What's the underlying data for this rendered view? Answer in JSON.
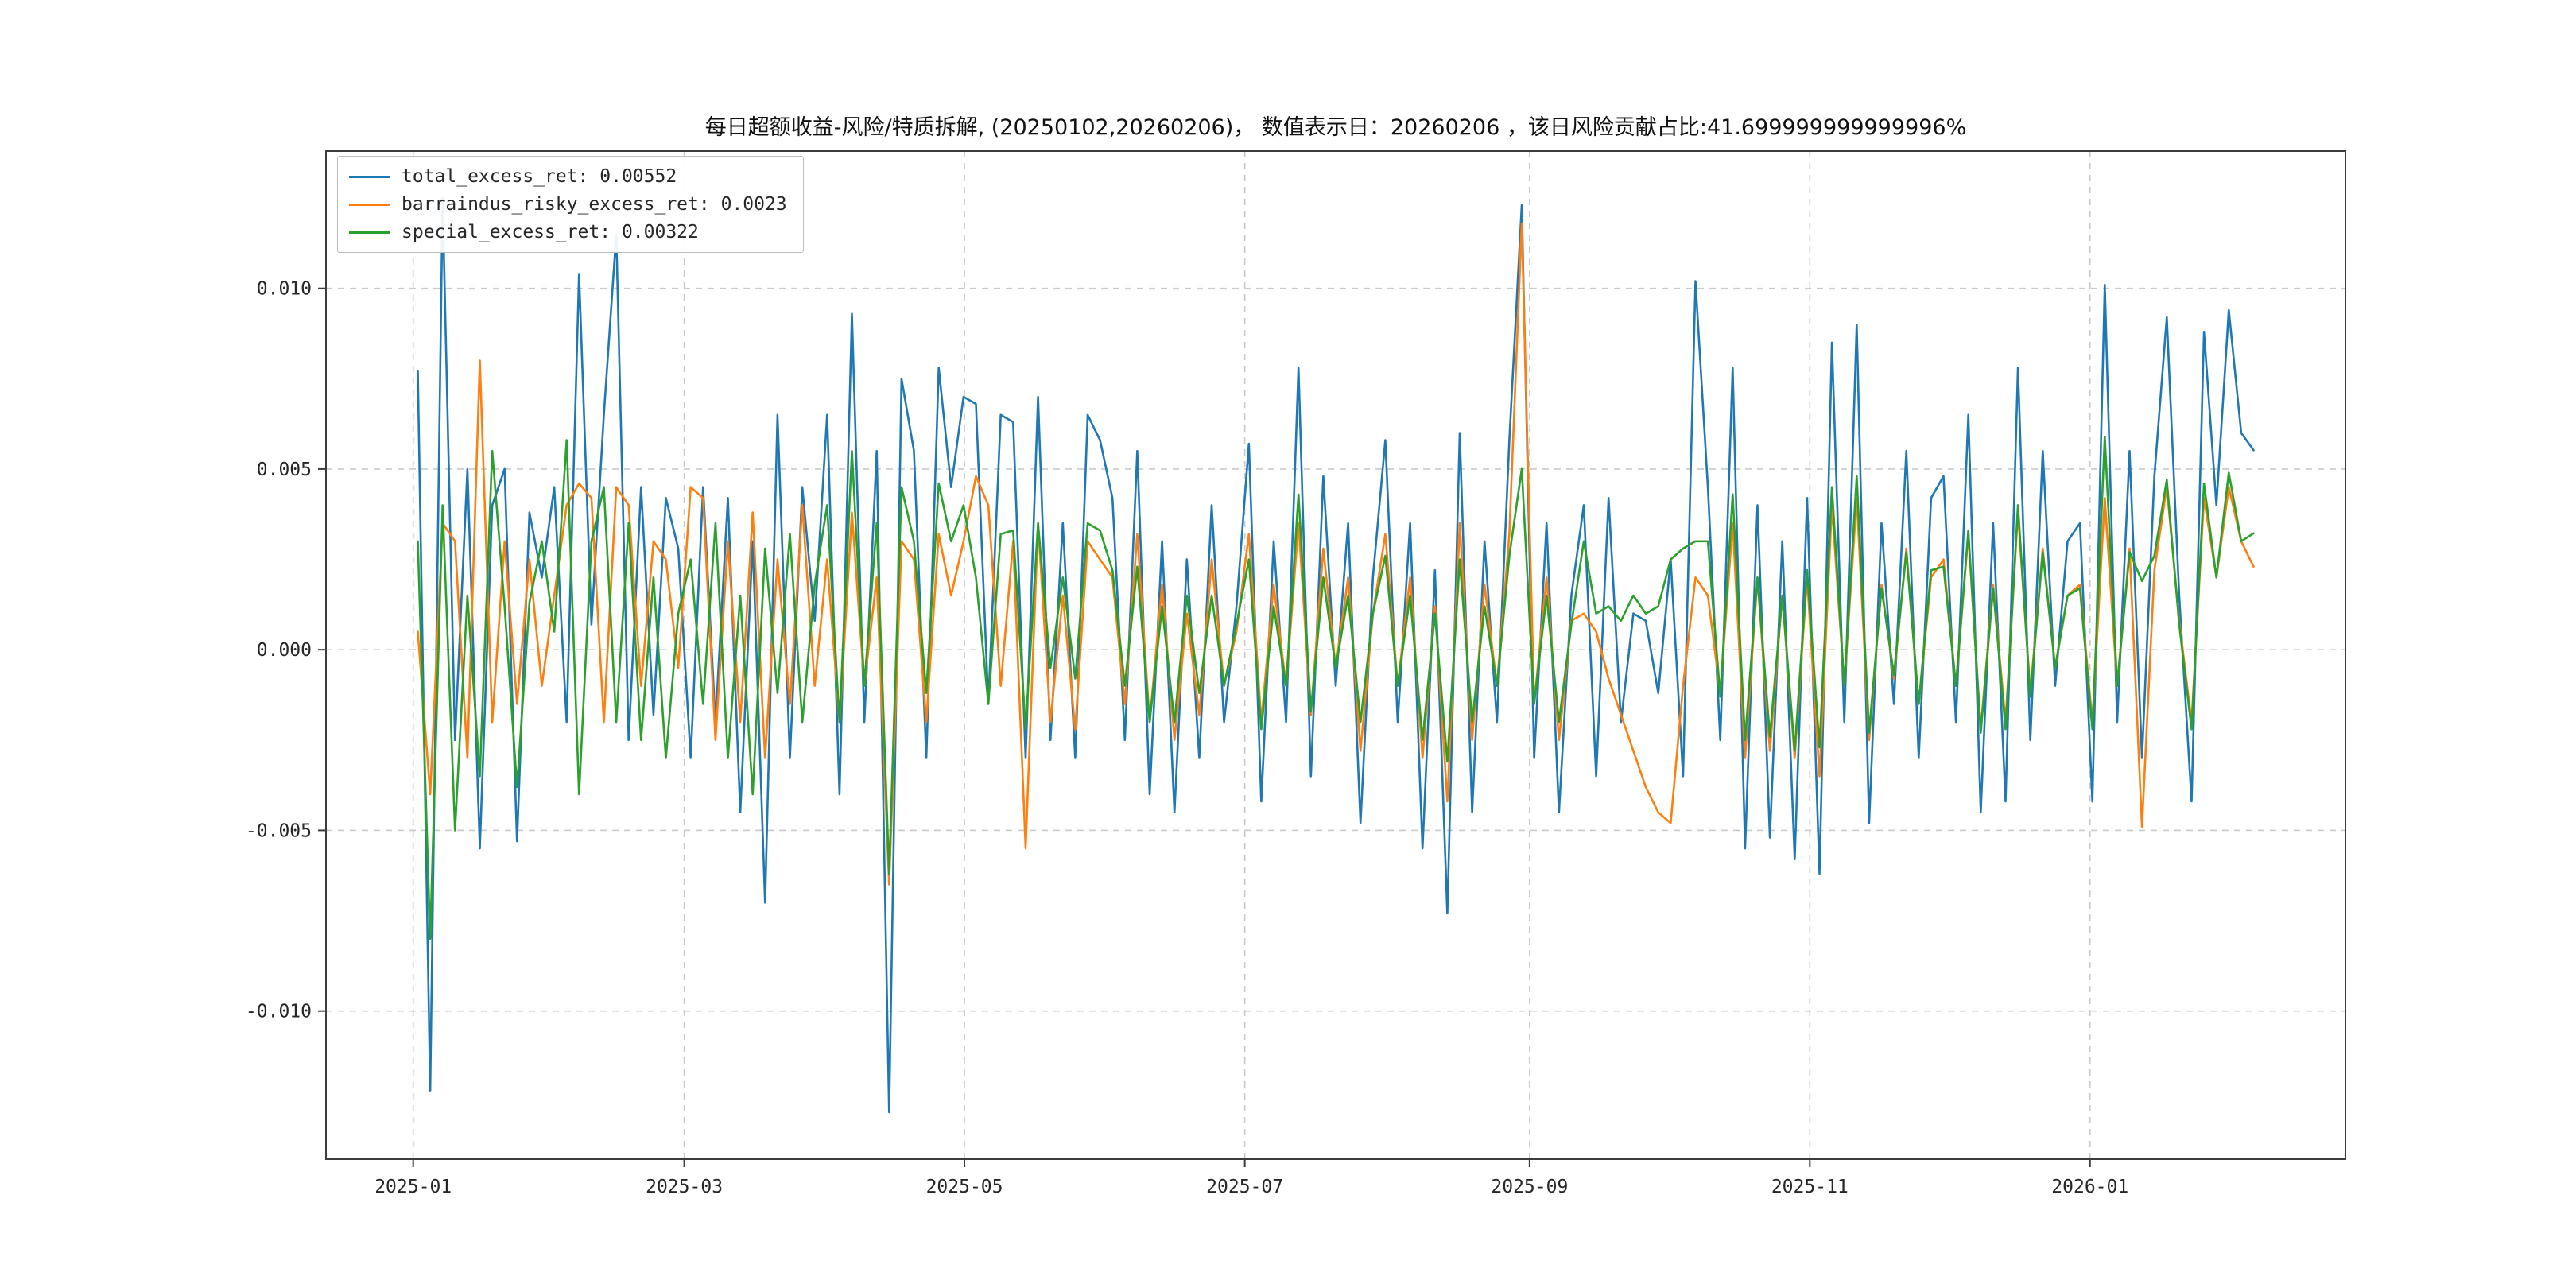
{
  "chart_data": {
    "type": "line",
    "title": "每日超额收益-风险/特质拆解, (20250102,20260206)，  数值表示日：20260206 ，该日风险贡献占比:41.699999999999996%",
    "x_axis": {
      "tick_labels": [
        "2025-01",
        "2025-03",
        "2025-05",
        "2025-07",
        "2025-09",
        "2025-11",
        "2026-01"
      ],
      "tick_positions": [
        -0.37,
        21.48,
        44.07,
        66.67,
        89.63,
        112.22,
        134.81
      ],
      "xlim": [
        -7.4,
        155.4
      ]
    },
    "y_axis": {
      "tick_labels": [
        "0.010",
        "0.005",
        "0.000",
        "-0.005",
        "-0.010"
      ],
      "tick_values": [
        0.01,
        0.005,
        0.0,
        -0.005,
        -0.01
      ],
      "ylim": [
        -0.0141,
        0.0138
      ]
    },
    "grid": {
      "on": true,
      "style": "dashed",
      "color": "#c9c9c9"
    },
    "legend": {
      "position": "upper-left",
      "entries": [
        {
          "label": "total_excess_ret: 0.00552",
          "color": "#1f77b4"
        },
        {
          "label": "barraindus_risky_excess_ret: 0.0023",
          "color": "#ff7f0e"
        },
        {
          "label": "special_excess_ret: 0.00322",
          "color": "#2ca02c"
        }
      ]
    },
    "series": [
      {
        "name": "total_excess_ret",
        "last_value": 0.00552,
        "color": "#1f77b4",
        "values": [
          0.0077,
          -0.0122,
          0.0125,
          -0.0025,
          0.005,
          -0.0055,
          0.004,
          0.005,
          -0.0053,
          0.0038,
          0.002,
          0.0045,
          -0.002,
          0.0104,
          0.0007,
          0.0065,
          0.0115,
          -0.0025,
          0.0045,
          -0.0018,
          0.0042,
          0.0028,
          -0.003,
          0.0045,
          -0.002,
          0.0042,
          -0.0045,
          0.003,
          -0.007,
          0.0065,
          -0.003,
          0.0045,
          0.0008,
          0.0065,
          -0.004,
          0.0093,
          -0.002,
          0.0055,
          -0.0128,
          0.0075,
          0.0055,
          -0.003,
          0.0078,
          0.0045,
          0.007,
          0.0068,
          -0.0015,
          0.0065,
          0.0063,
          -0.003,
          0.007,
          -0.0025,
          0.0035,
          -0.003,
          0.0065,
          0.0058,
          0.0042,
          -0.0025,
          0.0055,
          -0.004,
          0.003,
          -0.0045,
          0.0025,
          -0.003,
          0.004,
          -0.002,
          0.0012,
          0.0057,
          -0.0042,
          0.003,
          -0.002,
          0.0078,
          -0.0035,
          0.0048,
          -0.001,
          0.0035,
          -0.0048,
          0.002,
          0.0058,
          -0.002,
          0.0035,
          -0.0055,
          0.0022,
          -0.0073,
          0.006,
          -0.0045,
          0.003,
          -0.002,
          0.0058,
          0.0123,
          -0.003,
          0.0035,
          -0.0045,
          0.0015,
          0.004,
          -0.0035,
          0.0042,
          -0.002,
          0.001,
          0.0008,
          -0.0012,
          0.0025,
          -0.0035,
          0.0102,
          0.0045,
          -0.0025,
          0.0078,
          -0.0055,
          0.004,
          -0.0052,
          0.003,
          -0.0058,
          0.0042,
          -0.0062,
          0.0085,
          -0.002,
          0.009,
          -0.0048,
          0.0035,
          -0.0015,
          0.0055,
          -0.003,
          0.0042,
          0.0048,
          -0.002,
          0.0065,
          -0.0045,
          0.0035,
          -0.0042,
          0.0078,
          -0.0025,
          0.0055,
          -0.001,
          0.003,
          0.0035,
          -0.0042,
          0.0101,
          -0.002,
          0.0055,
          -0.003,
          0.0048,
          0.0092,
          0.0015,
          -0.0042,
          0.0088,
          0.004,
          0.0094,
          0.006,
          0.00552
        ]
      },
      {
        "name": "barraindus_risky_excess_ret",
        "last_value": 0.0023,
        "color": "#ff7f0e",
        "values": [
          0.0005,
          -0.004,
          0.0035,
          0.003,
          -0.003,
          0.008,
          -0.002,
          0.003,
          -0.0015,
          0.0025,
          -0.001,
          0.0015,
          0.004,
          0.0046,
          0.0042,
          -0.002,
          0.0045,
          0.004,
          -0.001,
          0.003,
          0.0025,
          -0.0005,
          0.0045,
          0.0042,
          -0.0025,
          0.003,
          -0.002,
          0.0038,
          -0.003,
          0.0025,
          -0.0015,
          0.004,
          -0.001,
          0.0025,
          -0.002,
          0.0038,
          -0.001,
          0.002,
          -0.0065,
          0.003,
          0.0025,
          -0.002,
          0.0032,
          0.0015,
          0.003,
          0.0048,
          0.004,
          -0.001,
          0.003,
          -0.0055,
          0.0035,
          -0.002,
          0.0015,
          -0.0022,
          0.003,
          0.0025,
          0.002,
          -0.0015,
          0.0032,
          -0.002,
          0.0018,
          -0.0025,
          0.001,
          -0.0018,
          0.0025,
          -0.001,
          0.0005,
          0.0032,
          -0.002,
          0.0018,
          -0.001,
          0.0035,
          -0.0018,
          0.0028,
          -0.0005,
          0.002,
          -0.0028,
          0.001,
          0.0032,
          -0.001,
          0.002,
          -0.003,
          0.0012,
          -0.0042,
          0.0035,
          -0.0025,
          0.0018,
          -0.001,
          0.0032,
          0.0118,
          -0.0015,
          0.002,
          -0.0025,
          0.0008,
          0.001,
          0.0005,
          -0.0008,
          -0.0018,
          -0.0028,
          -0.0038,
          -0.0045,
          -0.0048,
          -0.001,
          0.002,
          0.0015,
          -0.0012,
          0.0035,
          -0.003,
          0.002,
          -0.0028,
          0.0015,
          -0.003,
          0.002,
          -0.0035,
          0.004,
          -0.001,
          0.0042,
          -0.0025,
          0.0018,
          -0.0008,
          0.0028,
          -0.0015,
          0.002,
          0.0025,
          -0.001,
          0.0032,
          -0.0022,
          0.0018,
          -0.002,
          0.0038,
          -0.0012,
          0.0028,
          -0.0005,
          0.0015,
          0.0018,
          -0.002,
          0.0042,
          -0.001,
          0.0028,
          -0.0049,
          0.0022,
          0.0045,
          0.0008,
          -0.002,
          0.0042,
          0.002,
          0.0045,
          0.003,
          0.0023
        ]
      },
      {
        "name": "special_excess_ret",
        "last_value": 0.00322,
        "color": "#2ca02c",
        "values": [
          0.003,
          -0.008,
          0.004,
          -0.005,
          0.0015,
          -0.0035,
          0.0055,
          0.0012,
          -0.0038,
          0.0013,
          0.003,
          0.0005,
          0.0058,
          -0.004,
          0.003,
          0.0045,
          -0.002,
          0.0035,
          -0.0025,
          0.002,
          -0.003,
          0.001,
          0.0025,
          -0.0015,
          0.0035,
          -0.003,
          0.0015,
          -0.004,
          0.0028,
          -0.0012,
          0.0032,
          -0.002,
          0.0018,
          0.004,
          -0.002,
          0.0055,
          -0.001,
          0.0035,
          -0.0062,
          0.0045,
          0.003,
          -0.0012,
          0.0046,
          0.003,
          0.004,
          0.002,
          -0.0015,
          0.0032,
          0.0033,
          -0.0022,
          0.0035,
          -0.0005,
          0.002,
          -0.0008,
          0.0035,
          0.0033,
          0.0022,
          -0.001,
          0.0023,
          -0.002,
          0.0012,
          -0.002,
          0.0015,
          -0.0012,
          0.0015,
          -0.001,
          0.0007,
          0.0025,
          -0.0022,
          0.0012,
          -0.001,
          0.0043,
          -0.0017,
          0.002,
          -0.0005,
          0.0015,
          -0.002,
          0.001,
          0.0026,
          -0.001,
          0.0015,
          -0.0025,
          0.001,
          -0.0031,
          0.0025,
          -0.002,
          0.0012,
          -0.001,
          0.0026,
          0.005,
          -0.0015,
          0.0015,
          -0.002,
          0.0007,
          0.003,
          0.001,
          0.0012,
          0.0008,
          0.0015,
          0.001,
          0.0012,
          0.0025,
          0.0028,
          0.003,
          0.003,
          -0.0013,
          0.0043,
          -0.0025,
          0.002,
          -0.0024,
          0.0015,
          -0.0028,
          0.0022,
          -0.0027,
          0.0045,
          -0.001,
          0.0048,
          -0.0023,
          0.0017,
          -0.0007,
          0.0027,
          -0.0015,
          0.0022,
          0.0023,
          -0.001,
          0.0033,
          -0.0023,
          0.0017,
          -0.0022,
          0.004,
          -0.0013,
          0.0027,
          -0.0005,
          0.0015,
          0.0017,
          -0.0022,
          0.0059,
          -0.001,
          0.0027,
          0.0019,
          0.0026,
          0.0047,
          0.0007,
          -0.0022,
          0.0046,
          0.002,
          0.0049,
          0.003,
          0.00322
        ]
      }
    ]
  }
}
